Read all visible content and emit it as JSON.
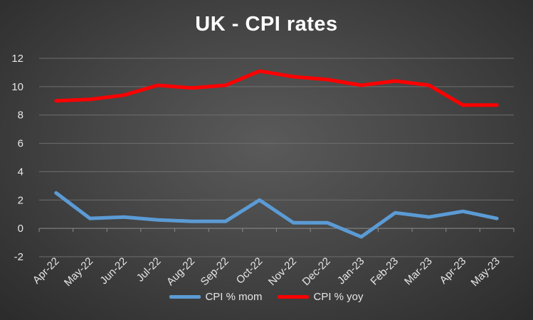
{
  "chart_data": {
    "type": "line",
    "title": "UK - CPI rates",
    "xlabel": "",
    "ylabel": "",
    "ylim": [
      -2,
      12
    ],
    "yticks": [
      "-2",
      "0",
      "2",
      "4",
      "6",
      "8",
      "10",
      "12"
    ],
    "grid": true,
    "legend_position": "bottom",
    "categories": [
      "Apr-22",
      "May-22",
      "Jun-22",
      "Jul-22",
      "Aug-22",
      "Sep-22",
      "Oct-22",
      "Nov-22",
      "Dec-22",
      "Jan-23",
      "Feb-23",
      "Mar-23",
      "Apr-23",
      "May-23"
    ],
    "series": [
      {
        "name": "CPI % mom",
        "color": "#5b9bd5",
        "values": [
          2.5,
          0.7,
          0.8,
          0.6,
          0.5,
          0.5,
          2.0,
          0.4,
          0.4,
          -0.6,
          1.1,
          0.8,
          1.2,
          0.7
        ]
      },
      {
        "name": "CPI % yoy",
        "color": "#ff0000",
        "values": [
          9.0,
          9.1,
          9.4,
          10.1,
          9.9,
          10.1,
          11.1,
          10.7,
          10.5,
          10.1,
          10.4,
          10.1,
          8.7,
          8.7
        ]
      }
    ]
  }
}
